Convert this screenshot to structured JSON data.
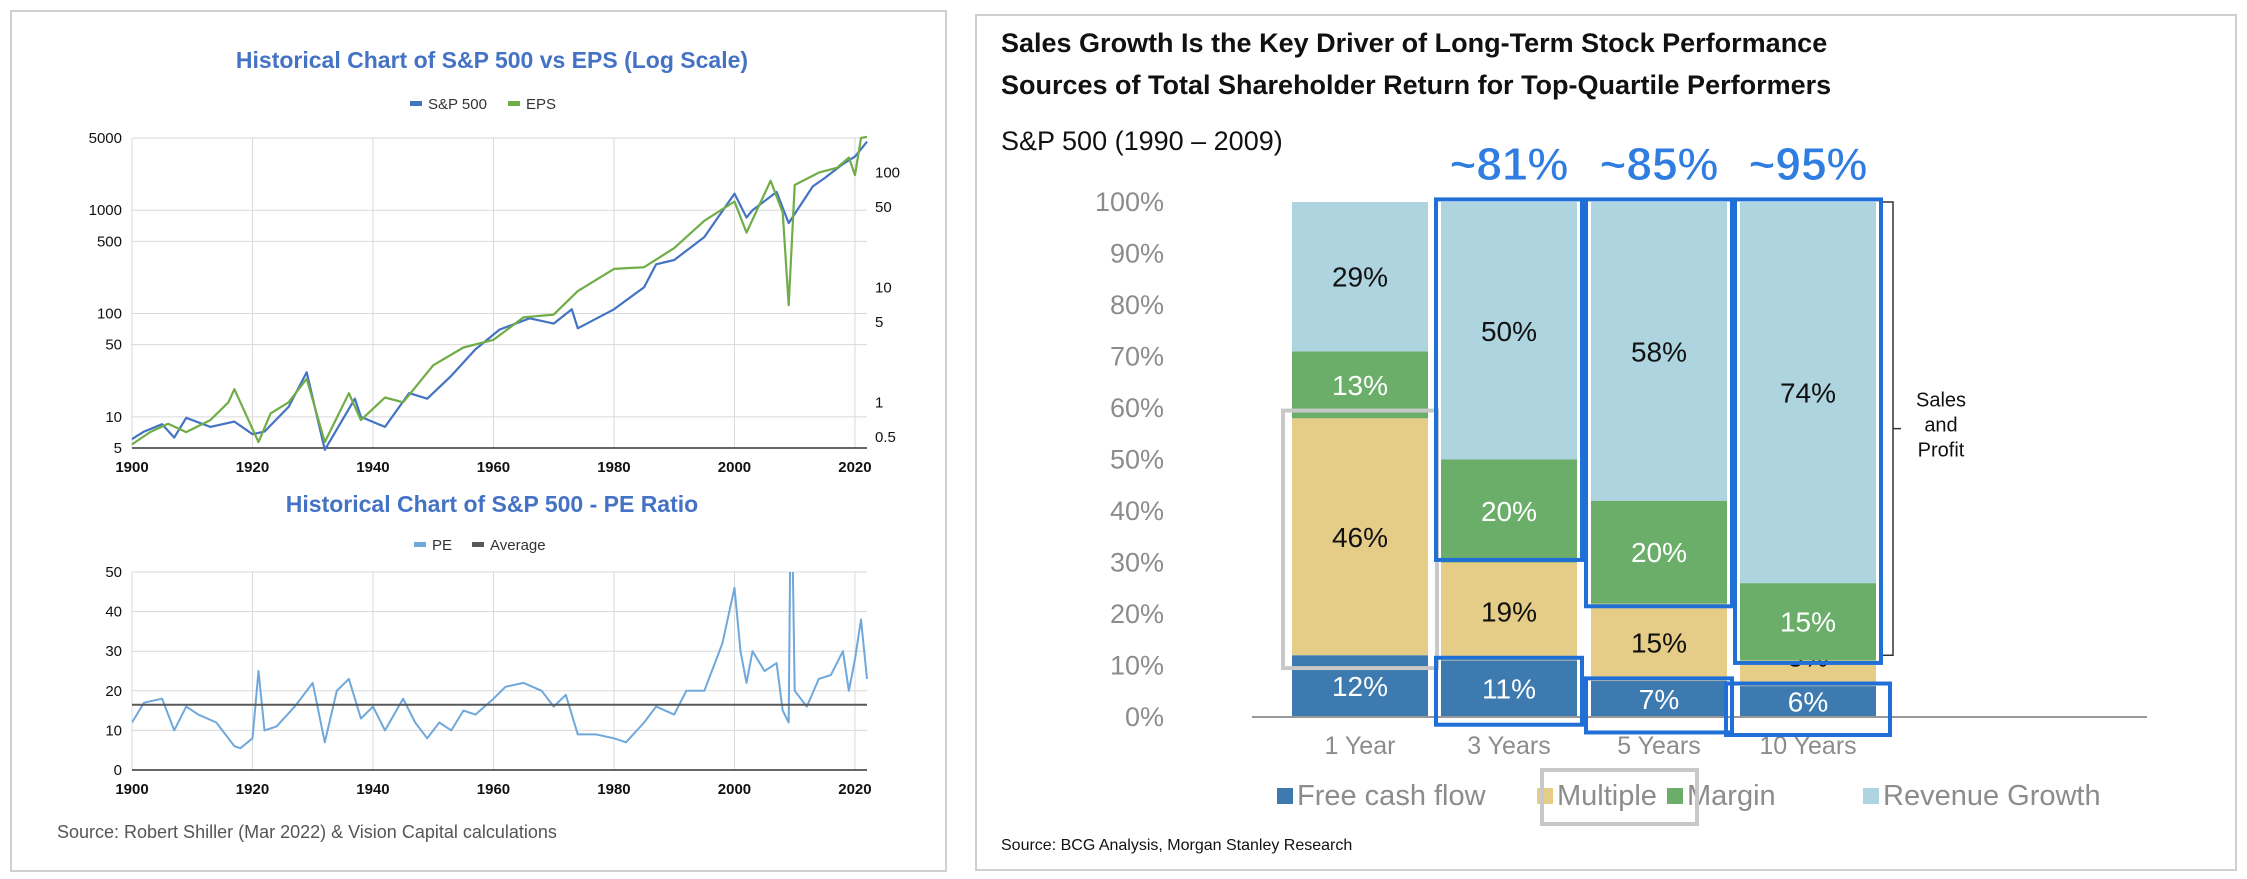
{
  "left_panel": {
    "source": "Source: Robert Shiller (Mar 2022) & Vision Capital calculations"
  },
  "right_panel": {
    "title_line1": "Sales Growth Is the Key Driver of Long-Term Stock Performance",
    "title_line2": "Sources of Total Shareholder Return for Top-Quartile Performers",
    "subtitle": "S&P 500 (1990 – 2009)",
    "bracket_label": [
      "Sales",
      "and",
      "Profit"
    ],
    "source": "Source: BCG Analysis, Morgan Stanley Research"
  },
  "chart_data": [
    {
      "type": "line",
      "title": "Historical Chart of S&P 500 vs EPS (Log Scale)",
      "legend_position": "top-center",
      "colors": {
        "S&P 500": "#4472c4",
        "EPS": "#70ad47"
      },
      "x_ticks": [
        1900,
        1920,
        1940,
        1960,
        1980,
        2000,
        2020
      ],
      "xlim": [
        1900,
        2022
      ],
      "y_left_ticks": [
        5,
        10,
        50,
        100,
        500,
        1000,
        5000
      ],
      "y_left_lim": [
        5,
        5000
      ],
      "y_right_ticks": [
        0.5,
        1,
        5,
        10,
        50,
        100
      ],
      "y_right_lim": [
        0.4,
        200
      ],
      "log_scale": true,
      "grid": true,
      "series": [
        {
          "name": "S&P 500",
          "axis": "left",
          "x": [
            1900,
            1902,
            1905,
            1907,
            1909,
            1913,
            1917,
            1920,
            1922,
            1926,
            1929,
            1932,
            1937,
            1938,
            1942,
            1946,
            1949,
            1953,
            1957,
            1961,
            1966,
            1970,
            1973,
            1974,
            1980,
            1985,
            1987,
            1990,
            1995,
            2000,
            2002,
            2003,
            2007,
            2009,
            2013,
            2015,
            2018,
            2020,
            2022
          ],
          "y": [
            6.1,
            7.2,
            8.5,
            6.3,
            9.8,
            8.0,
            9.0,
            6.8,
            7.2,
            12.5,
            27,
            4.8,
            15,
            10,
            8,
            17,
            15,
            25,
            45,
            70,
            90,
            80,
            110,
            72,
            110,
            180,
            300,
            330,
            550,
            1450,
            850,
            1000,
            1500,
            750,
            1700,
            2050,
            2800,
            3300,
            4600
          ]
        },
        {
          "name": "EPS",
          "axis": "right",
          "x": [
            1900,
            1903,
            1906,
            1909,
            1913,
            1916,
            1917,
            1921,
            1923,
            1926,
            1929,
            1932,
            1936,
            1938,
            1942,
            1945,
            1950,
            1955,
            1960,
            1965,
            1970,
            1974,
            1980,
            1985,
            1990,
            1995,
            2000,
            2002,
            2006,
            2008,
            2009,
            2010,
            2014,
            2017,
            2019,
            2020,
            2021,
            2022
          ],
          "y": [
            0.43,
            0.55,
            0.65,
            0.55,
            0.7,
            1.0,
            1.3,
            0.45,
            0.8,
            1.0,
            1.6,
            0.45,
            1.2,
            0.7,
            1.1,
            1.0,
            2.1,
            3.0,
            3.5,
            5.5,
            5.8,
            9.3,
            14.5,
            15,
            22,
            38,
            56,
            30,
            85,
            45,
            7,
            78,
            100,
            110,
            135,
            95,
            200,
            205
          ]
        }
      ]
    },
    {
      "type": "line",
      "title": "Historical Chart of S&P 500 - PE Ratio",
      "legend_position": "top-center",
      "colors": {
        "PE": "#6fa8dc",
        "Average": "#595959"
      },
      "x_ticks": [
        1900,
        1920,
        1940,
        1960,
        1980,
        2000,
        2020
      ],
      "xlim": [
        1900,
        2022
      ],
      "y_ticks": [
        0,
        10,
        20,
        30,
        40,
        50
      ],
      "ylim": [
        0,
        50
      ],
      "grid": true,
      "series": [
        {
          "name": "PE",
          "x": [
            1900,
            1902,
            1905,
            1907,
            1909,
            1911,
            1914,
            1917,
            1918,
            1920,
            1921,
            1922,
            1924,
            1927,
            1929,
            1930,
            1932,
            1934,
            1936,
            1938,
            1940,
            1942,
            1945,
            1947,
            1949,
            1951,
            1953,
            1955,
            1957,
            1960,
            1962,
            1965,
            1968,
            1970,
            1972,
            1974,
            1977,
            1980,
            1982,
            1985,
            1987,
            1990,
            1992,
            1995,
            1997,
            1998,
            2000,
            2001,
            2002,
            2003,
            2005,
            2007,
            2008,
            2009,
            2009.4,
            2010,
            2012,
            2014,
            2016,
            2018,
            2019,
            2020,
            2021,
            2022
          ],
          "y": [
            12,
            17,
            18,
            10,
            16,
            14,
            12,
            6,
            5.5,
            8,
            25,
            10,
            11,
            16,
            20,
            22,
            7,
            20,
            23,
            13,
            16,
            10,
            18,
            12,
            8,
            12,
            10,
            15,
            14,
            18,
            21,
            22,
            20,
            16,
            19,
            9,
            9,
            8,
            7,
            12,
            16,
            14,
            20,
            20,
            28,
            32,
            46,
            30,
            22,
            30,
            25,
            27,
            15,
            12,
            80,
            20,
            16,
            23,
            24,
            30,
            20,
            28,
            38,
            23
          ]
        },
        {
          "name": "Average",
          "x": [
            1900,
            2022
          ],
          "y": [
            16.5,
            16.5
          ]
        }
      ]
    },
    {
      "type": "bar",
      "stacked": true,
      "categories": [
        "1 Year",
        "3 Years",
        "5 Years",
        "10 Years"
      ],
      "y_ticks": [
        "0%",
        "10%",
        "20%",
        "30%",
        "40%",
        "50%",
        "60%",
        "70%",
        "80%",
        "90%",
        "100%"
      ],
      "ylim": [
        0,
        100
      ],
      "legend_position": "bottom",
      "colors": {
        "Free cash flow": "#3d7ab0",
        "Multiple": "#e6cd87",
        "Margin": "#6aae6a",
        "Revenue Growth": "#add4df"
      },
      "series": [
        {
          "name": "Free cash flow",
          "values": [
            12,
            11,
            7,
            6
          ],
          "labels": [
            "12%",
            "11%",
            "7%",
            "6%"
          ]
        },
        {
          "name": "Multiple",
          "values": [
            46,
            19,
            15,
            5
          ],
          "labels": [
            "46%",
            "19%",
            "15%",
            "5%"
          ]
        },
        {
          "name": "Margin",
          "values": [
            13,
            20,
            20,
            15
          ],
          "labels": [
            "13%",
            "20%",
            "20%",
            "15%"
          ]
        },
        {
          "name": "Revenue Growth",
          "values": [
            29,
            50,
            58,
            74
          ],
          "labels": [
            "29%",
            "50%",
            "58%",
            "74%"
          ]
        }
      ],
      "annotations": [
        "~81%",
        "~85%",
        "~95%"
      ]
    }
  ]
}
